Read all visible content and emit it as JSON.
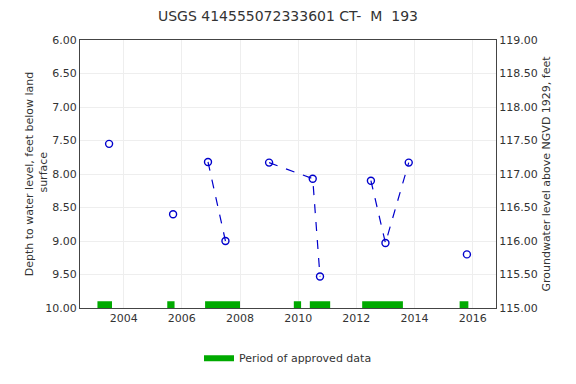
{
  "chart_data": {
    "type": "line",
    "title": "USGS 414555072333601 CT-  M  193",
    "ylabel": "Depth to water level, feet below land\n surface",
    "y2label": "Groundwater level above NGVD 1929, feet",
    "xlim": [
      2002.5,
      2016.8
    ],
    "xticks": [
      2004,
      2006,
      2008,
      2010,
      2012,
      2014,
      2016
    ],
    "ylim": [
      10.0,
      6.0
    ],
    "yticks": [
      {
        "value": 6.0,
        "label": "6.00"
      },
      {
        "value": 6.5,
        "label": "6.50"
      },
      {
        "value": 7.0,
        "label": "7.00"
      },
      {
        "value": 7.5,
        "label": "7.50"
      },
      {
        "value": 8.0,
        "label": "8.00"
      },
      {
        "value": 8.5,
        "label": "8.50"
      },
      {
        "value": 9.0,
        "label": "9.00"
      },
      {
        "value": 9.5,
        "label": "9.50"
      },
      {
        "value": 10.0,
        "label": "10.00"
      }
    ],
    "y2lim": [
      115.0,
      119.0
    ],
    "y2ticks": [
      {
        "value": 115.0,
        "label": "115.00"
      },
      {
        "value": 115.5,
        "label": "115.50"
      },
      {
        "value": 116.0,
        "label": "116.00"
      },
      {
        "value": 116.5,
        "label": "116.50"
      },
      {
        "value": 117.0,
        "label": "117.00"
      },
      {
        "value": 117.5,
        "label": "117.50"
      },
      {
        "value": 118.0,
        "label": "118.00"
      },
      {
        "value": 118.5,
        "label": "118.50"
      },
      {
        "value": 119.0,
        "label": "119.00"
      }
    ],
    "grid": true,
    "legend": "bottom",
    "series": [
      {
        "type": "line",
        "color": "#0000cc",
        "line_style": "dashed",
        "marker": "open circle",
        "x": [
          2003.5,
          null,
          2005.7,
          null,
          2006.9,
          2007.5,
          null,
          2009.0,
          2010.5,
          2010.75,
          null,
          2012.5,
          2013.0,
          2013.8,
          null,
          2015.8
        ],
        "values": [
          7.55,
          null,
          8.6,
          null,
          7.82,
          9.0,
          null,
          7.83,
          8.07,
          9.53,
          null,
          8.1,
          9.03,
          7.83,
          null,
          9.2
        ]
      },
      {
        "name": "Period of approved data",
        "type": "span",
        "color": "#00aa00",
        "periods": [
          [
            2003.1,
            2003.6
          ],
          [
            2005.5,
            2005.75
          ],
          [
            2006.8,
            2008.0
          ],
          [
            2009.85,
            2010.1
          ],
          [
            2010.4,
            2011.1
          ],
          [
            2012.2,
            2013.6
          ],
          [
            2015.55,
            2015.85
          ]
        ]
      }
    ]
  }
}
